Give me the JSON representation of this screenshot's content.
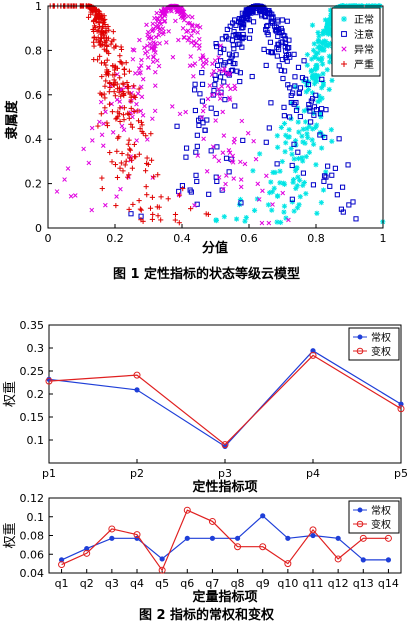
{
  "figure1": {
    "caption": "图 1 定性指标的状态等级云模型",
    "chart_data": {
      "type": "scatter",
      "xlabel": "分值",
      "ylabel": "隶属度",
      "xlim": [
        0,
        1
      ],
      "ylim": [
        0,
        1
      ],
      "xticks": [
        "0",
        "0.2",
        "0.4",
        "0.6",
        "0.8",
        "1"
      ],
      "yticks": [
        "0",
        "0.2",
        "0.4",
        "0.6",
        "0.8",
        "1"
      ],
      "legend_position": "top-right",
      "series": [
        {
          "name": "正常",
          "marker": "asterisk",
          "color": "#00e5e5",
          "side": "rising",
          "center": 0.88,
          "spread": 0.09,
          "flat_to": 1.0,
          "edge": 0.605
        },
        {
          "name": "注意",
          "marker": "square",
          "color": "#0000c8",
          "side": "both",
          "center": 0.625,
          "spread": 0.115,
          "edge_low": 0.3,
          "edge_high": 0.985
        },
        {
          "name": "异常",
          "marker": "x",
          "color": "#e000e0",
          "side": "both",
          "center": 0.375,
          "spread": 0.115,
          "edge_low": 0.03,
          "edge_high": 0.72
        },
        {
          "name": "严重",
          "marker": "plus",
          "color": "#e00000",
          "side": "falling",
          "center": 0.12,
          "spread": 0.09,
          "flat_from": 0.0,
          "edge": 0.41
        }
      ]
    }
  },
  "figure2": {
    "caption": "图 2 指标的常权和变权",
    "chart_data": [
      {
        "type": "line",
        "xlabel": "定性指标项",
        "ylabel": "权重",
        "categories": [
          "p1",
          "p2",
          "p3",
          "p4",
          "p5"
        ],
        "ylim": [
          0.05,
          0.35
        ],
        "yticks": [
          "0.1",
          "0.15",
          "0.2",
          "0.25",
          "0.3",
          "0.35"
        ],
        "legend_position": "top-right",
        "series": [
          {
            "name": "常权",
            "color": "#1f3fd8",
            "marker": "dot",
            "values": [
              0.232,
              0.209,
              0.086,
              0.294,
              0.178
            ]
          },
          {
            "name": "变权",
            "color": "#e02020",
            "marker": "circle",
            "values": [
              0.228,
              0.241,
              0.09,
              0.284,
              0.168
            ]
          }
        ]
      },
      {
        "type": "line",
        "xlabel": "定量指标项",
        "ylabel": "权重",
        "categories": [
          "q1",
          "q2",
          "q3",
          "q4",
          "q5",
          "q6",
          "q7",
          "q8",
          "q9",
          "q10",
          "q11",
          "q12",
          "q13",
          "q14"
        ],
        "ylim": [
          0.04,
          0.12
        ],
        "yticks": [
          "0.04",
          "0.06",
          "0.08",
          "0.1",
          "0.12"
        ],
        "legend_position": "top-right",
        "series": [
          {
            "name": "常权",
            "color": "#1f3fd8",
            "marker": "dot",
            "values": [
              0.054,
              0.066,
              0.077,
              0.077,
              0.055,
              0.077,
              0.077,
              0.077,
              0.101,
              0.077,
              0.08,
              0.077,
              0.054,
              0.054
            ]
          },
          {
            "name": "变权",
            "color": "#e02020",
            "marker": "circle",
            "values": [
              0.049,
              0.061,
              0.087,
              0.081,
              0.043,
              0.107,
              0.095,
              0.068,
              0.068,
              0.05,
              0.086,
              0.055,
              0.077,
              0.077
            ]
          }
        ]
      }
    ]
  }
}
